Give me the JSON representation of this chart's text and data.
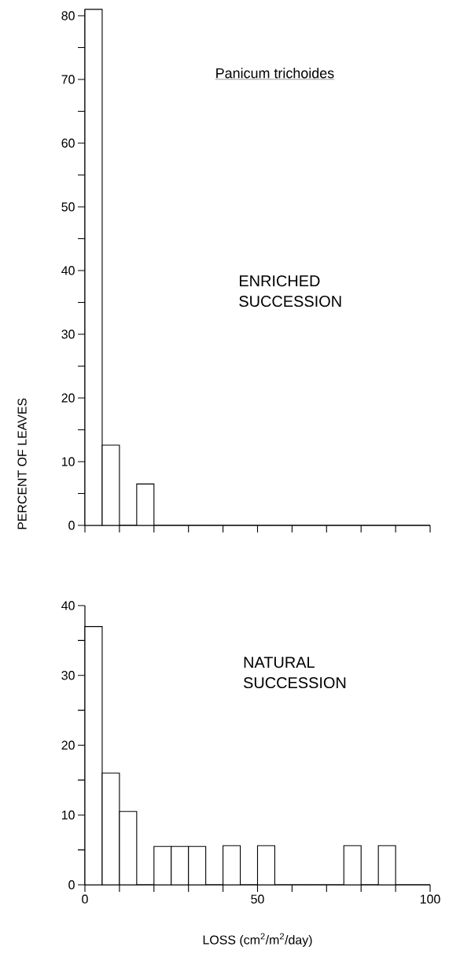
{
  "chart_data": [
    {
      "type": "histogram",
      "title": "Panicum trichoides",
      "ylabel": "PERCENT OF LEAVES",
      "bins": [
        0,
        5,
        10,
        15,
        20,
        25,
        30,
        35,
        40,
        45,
        50,
        55,
        60,
        65,
        70,
        75,
        80,
        85,
        90,
        95,
        100
      ],
      "values": [
        81,
        12.6,
        0,
        6.5,
        0,
        0,
        0,
        0,
        0,
        0,
        0,
        0,
        0,
        0,
        0,
        0,
        0,
        0,
        0,
        0
      ],
      "xlim": [
        0,
        100
      ],
      "ylim": [
        0,
        81
      ],
      "xticks": [
        {
          "value": 0,
          "label": null
        },
        {
          "value": 10,
          "label": null
        },
        {
          "value": 20,
          "label": null
        },
        {
          "value": 30,
          "label": null
        },
        {
          "value": 40,
          "label": null
        },
        {
          "value": 50,
          "label": null
        },
        {
          "value": 60,
          "label": null
        },
        {
          "value": 70,
          "label": null
        },
        {
          "value": 80,
          "label": null
        },
        {
          "value": 90,
          "label": null
        },
        {
          "value": 100,
          "label": null
        }
      ],
      "yticks": [
        0,
        {
          "value": 5,
          "label": null
        },
        10,
        {
          "value": 15,
          "label": null
        },
        20,
        {
          "value": 25,
          "label": null
        },
        30,
        {
          "value": 35,
          "label": null
        },
        40,
        {
          "value": 45,
          "label": null
        },
        50,
        {
          "value": 55,
          "label": null
        },
        60,
        {
          "value": 65,
          "label": null
        },
        70,
        {
          "value": 75,
          "label": null
        },
        80
      ],
      "tick_labels": "y",
      "annotations": [
        "ENRICHED SUCCESSION"
      ]
    },
    {
      "type": "histogram",
      "xlabel": "LOSS (cm$^{2}$/m$^{2}$/day)",
      "bins": [
        0,
        5,
        10,
        15,
        20,
        25,
        30,
        35,
        40,
        45,
        50,
        55,
        60,
        65,
        70,
        75,
        80,
        85,
        90,
        95,
        100
      ],
      "values": [
        37,
        16,
        10.5,
        0,
        5.5,
        5.5,
        5.5,
        0,
        5.6,
        0,
        5.6,
        0,
        0,
        0,
        0,
        5.6,
        0,
        5.6,
        0,
        0
      ],
      "xlim": [
        0,
        100
      ],
      "ylim": [
        0,
        40
      ],
      "xticks": [
        0,
        {
          "value": 10,
          "label": null
        },
        {
          "value": 20,
          "label": null
        },
        {
          "value": 30,
          "label": null
        },
        {
          "value": 40,
          "label": null
        },
        50,
        {
          "value": 60,
          "label": null
        },
        {
          "value": 70,
          "label": null
        },
        {
          "value": 80,
          "label": null
        },
        {
          "value": 90,
          "label": null
        },
        100
      ],
      "yticks": [
        0,
        {
          "value": 5,
          "label": null
        },
        10,
        {
          "value": 15,
          "label": null
        },
        20,
        {
          "value": 25,
          "label": null
        },
        30,
        {
          "value": 35,
          "label": null
        },
        40
      ],
      "annotations": [
        "NATURAL SUCCESSION"
      ]
    }
  ]
}
